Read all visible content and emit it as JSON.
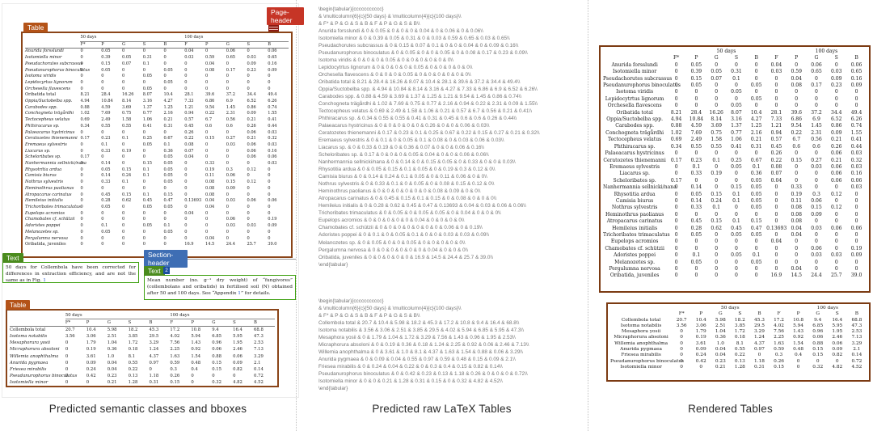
{
  "captions": {
    "left": "Predicted semantic classes and bboxes",
    "middle": "Predicted raw LaTeX Tables",
    "right": "Rendered Tables"
  },
  "labels": {
    "table": "Table",
    "page_header": "Page-header",
    "text": "Text",
    "section_header": "Section-header",
    "footnote_badge": "2"
  },
  "colors": {
    "table_label": "#b45318",
    "table_bbox": "#8a4418",
    "page_header_label": "#c63526",
    "text_label": "#4a8b1d",
    "text_bbox": "#3da00f",
    "section_header_label": "#3e6eb4",
    "rendered_table_border": "#7b3a12",
    "latex_text": "#767676"
  },
  "doc_text": {
    "text1_pre": "50 days for Collembola have been corrected for differences in extraction efficiency, and are not the same as in Fig. ",
    "text1_link": "1",
    "text1_post": "",
    "text2_pre": "Mean number (no. g⁻¹ dry weight) of “fungivores” (collembolans and oribatids) in fertilised soil (N) obtained after 50 and 100 days. See “Appendix ",
    "text2_link": "1",
    "text2_post": "” for details."
  },
  "tables": {
    "group_headers": [
      "50 days",
      "100 days"
    ],
    "columns": [
      "F*",
      "P",
      "G",
      "S",
      "B",
      "F",
      "P",
      "G",
      "S",
      "B"
    ],
    "table1_rows": [
      [
        "Anurida forsslundi",
        "0",
        "0.05",
        "0",
        "0",
        "0",
        "0.04",
        "0",
        "0.06",
        "0",
        "0.06"
      ],
      [
        "Isotomiella minor",
        "0",
        "0.39",
        "0.05",
        "0.31",
        "0",
        "0.03",
        "0.59",
        "0.65",
        "0.03",
        "0.65"
      ],
      [
        "Pseudachorutes subcrassus",
        "0",
        "0.15",
        "0.07",
        "0.1",
        "0",
        "0",
        "0.04",
        "0",
        "0.09",
        "0.16"
      ],
      [
        "Pseudanurophorus binoculatus",
        "0",
        "0.05",
        "0",
        "0",
        "0.05",
        "0",
        "0.08",
        "0.17",
        "0.23",
        "0.09"
      ],
      [
        "Isotoma viridis",
        "0",
        "0",
        "0",
        "0.05",
        "0",
        "0",
        "0",
        "0",
        "0",
        "0"
      ],
      [
        "Lepidocytrtus lignorum",
        "0",
        "0",
        "0",
        "0",
        "0.05",
        "0",
        "0",
        "0",
        "0",
        "0"
      ],
      [
        "Orchesella flavescens",
        "0",
        "0",
        "0",
        "0.05",
        "0",
        "0",
        "0",
        "0",
        "0",
        "0"
      ],
      [
        "Oribatida total",
        "8.21",
        "28.4",
        "16.26",
        "8.07",
        "10.4",
        "28.1",
        "39.6",
        "37.2",
        "34.4",
        "49.4"
      ],
      [
        "Oppia/Suctobelba spp.",
        "4.94",
        "10.84",
        "8.14",
        "3.16",
        "4.27",
        "7.33",
        "6.86",
        "6.9",
        "6.52",
        "6.26"
      ],
      [
        "Carabodes spp.",
        "0.88",
        "4.59",
        "3.69",
        "1.37",
        "1.25",
        "1.21",
        "9.54",
        "1.45",
        "0.86",
        "0.74"
      ],
      [
        "Conchogneta trägårdhi",
        "1.02",
        "7.69",
        "0.75",
        "0.77",
        "2.16",
        "0.94",
        "0.22",
        "2.31",
        "0.09",
        "1.55"
      ],
      [
        "Tectocepheus velatus",
        "0.69",
        "2.49",
        "1.58",
        "1.06",
        "0.21",
        "0.57",
        "6.7",
        "0.56",
        "0.21",
        "0.41"
      ],
      [
        "Phthiracarus sp.",
        "0.34",
        "0.55",
        "0.55",
        "0.41",
        "0.31",
        "0.45",
        "0.6",
        "0.6",
        "0.26",
        "0.44"
      ],
      [
        "Palaeacarus hystricinus",
        "0",
        "0",
        "0",
        "0",
        "0",
        "0.26",
        "0",
        "0",
        "0.06",
        "0.03"
      ],
      [
        "Ceratozetes thienemanni",
        "0.17",
        "0.23",
        "0.1",
        "0.25",
        "0.67",
        "0.22",
        "0.15",
        "0.27",
        "0.21",
        "0.32"
      ],
      [
        "Eremaeus sylvestris",
        "0",
        "0.1",
        "0",
        "0.05",
        "0.1",
        "0.08",
        "0",
        "0.03",
        "0.06",
        "0.03"
      ],
      [
        "Liacarus sp.",
        "0",
        "0.33",
        "0.19",
        "0",
        "0.36",
        "0.07",
        "0",
        "0",
        "0.06",
        "0.16"
      ],
      [
        "Scheloribates sp.",
        "0.17",
        "0",
        "0",
        "0",
        "0.05",
        "0.04",
        "0",
        "0",
        "0.06",
        "0.06"
      ],
      [
        "Nanhermannia sellnicki/nana",
        "0",
        "0.14",
        "0",
        "0.15",
        "0.05",
        "0",
        "0.33",
        "0",
        "0",
        "0.03"
      ],
      [
        "Rhysotitia ardua",
        "0",
        "0.05",
        "0.15",
        "0.1",
        "0.05",
        "0",
        "0.19",
        "0.3",
        "0.12",
        "0"
      ],
      [
        "Camisia biurus",
        "0",
        "0.14",
        "0.24",
        "0.1",
        "0.05",
        "0",
        "0.11",
        "0.06",
        "0",
        "0"
      ],
      [
        "Nothrus sylvestris",
        "0",
        "0.33",
        "0.1",
        "0",
        "0.05",
        "0",
        "0.08",
        "0.15",
        "0.12",
        "0"
      ],
      [
        "Heminothrus paolianus",
        "0",
        "0",
        "0",
        "0",
        "0",
        "0",
        "0.08",
        "0.09",
        "0",
        "0"
      ],
      [
        "Atropacarus carinatus",
        "0",
        "0.45",
        "0.15",
        "0.1",
        "0.15",
        "0",
        "0.08",
        "0",
        "0",
        "0"
      ],
      [
        "Hemileius initialis",
        "0",
        "0.28",
        "0.62",
        "0.45",
        "0.47",
        "0.13693",
        "0.04",
        "0.03",
        "0.06",
        "0.06"
      ],
      [
        "Trichoribates trimaculatus",
        "0",
        "0.05",
        "0",
        "0.05",
        "0.05",
        "0",
        "0.04",
        "0",
        "0",
        "0"
      ],
      [
        "Eupelops acromios",
        "0",
        "0",
        "0",
        "0",
        "0",
        "0.04",
        "0",
        "0",
        "0",
        "0"
      ],
      [
        "Chamobates cf. schützii",
        "0",
        "0",
        "0",
        "0",
        "0",
        "0",
        "0",
        "0.06",
        "0",
        "0.19"
      ],
      [
        "Adoristes poppei",
        "0",
        "0.1",
        "0",
        "0.05",
        "0.1",
        "0",
        "0",
        "0.03",
        "0.03",
        "0.09"
      ],
      [
        "Melanozetes sp.",
        "0",
        "0.05",
        "0",
        "0",
        "0.05",
        "0",
        "0",
        "0",
        "0",
        "0"
      ],
      [
        "Pergalumna nervosa",
        "0",
        "0",
        "0",
        "0",
        "0",
        "0",
        "0.04",
        "0",
        "0",
        "0"
      ],
      [
        "Oribatida, juveniles",
        "0",
        "0",
        "0",
        "0",
        "0",
        "16.9",
        "14.5",
        "24.4",
        "25.7",
        "39.0"
      ]
    ],
    "table2_rows": [
      [
        "Collembola total",
        "20.7",
        "10.4",
        "5.98",
        "18.2",
        "45.3",
        "17.2",
        "10.8",
        "9.4",
        "16.4",
        "68.8"
      ],
      [
        "Isotoma notabilis",
        "3.56",
        "3.06",
        "2.51",
        "3.85",
        "29.5",
        "4.02",
        "5.94",
        "6.85",
        "5.95",
        "47.3"
      ],
      [
        "Mesaphora yosii",
        "0",
        "1.79",
        "1.04",
        "1.72",
        "3.29",
        "7.56",
        "1.43",
        "0.96",
        "1.95",
        "2.53"
      ],
      [
        "Micraphorura absoloni",
        "0",
        "0.19",
        "0.36",
        "0.18",
        "1.24",
        "2.25",
        "0.92",
        "0.06",
        "2.46",
        "7.13"
      ],
      [
        "Willemia anophthalma",
        "0",
        "3.61",
        "1.0",
        "8.1",
        "4.37",
        "1.63",
        "1.54",
        "0.88",
        "0.06",
        "3.29"
      ],
      [
        "Anurida pygmaea",
        "0",
        "0.09",
        "0.04",
        "0.55",
        "0.97",
        "0.59",
        "0.48",
        "0.15",
        "0.09",
        "2.1"
      ],
      [
        "Friesea mirabilis",
        "0",
        "0.24",
        "0.04",
        "0.22",
        "0",
        "0.3",
        "0.4",
        "0.15",
        "0.82",
        "0.14"
      ],
      [
        "Pseudanurophorus binoculatus",
        "0",
        "0.42",
        "0.23",
        "0.13",
        "1.18",
        "0.26",
        "0",
        "0",
        "0",
        "0.72"
      ],
      [
        "Isotomiella minor",
        "0",
        "0",
        "0.21",
        "1.28",
        "0.31",
        "0.15",
        "0",
        "0.32",
        "4.82",
        "4.52"
      ]
    ],
    "doc_name_overrides": {
      "table1": {
        "5": "Lepidocyrtus lignorum",
        "19": "Rhysotritia ardua"
      },
      "table2": {
        "2": "Mesaphorura yosii"
      }
    }
  },
  "latex": {
    "begin": "\\begin{tabular}{ccccccccccc}",
    "multicolumn": "& \\multicolumn{6}{c}{50 days} & \\multicolumn{4}{c}{100 days}\\\\",
    "header": "& F* & P & G & S & B & F & P & G & S & B\\\\",
    "end": "\\end{tabular}"
  }
}
